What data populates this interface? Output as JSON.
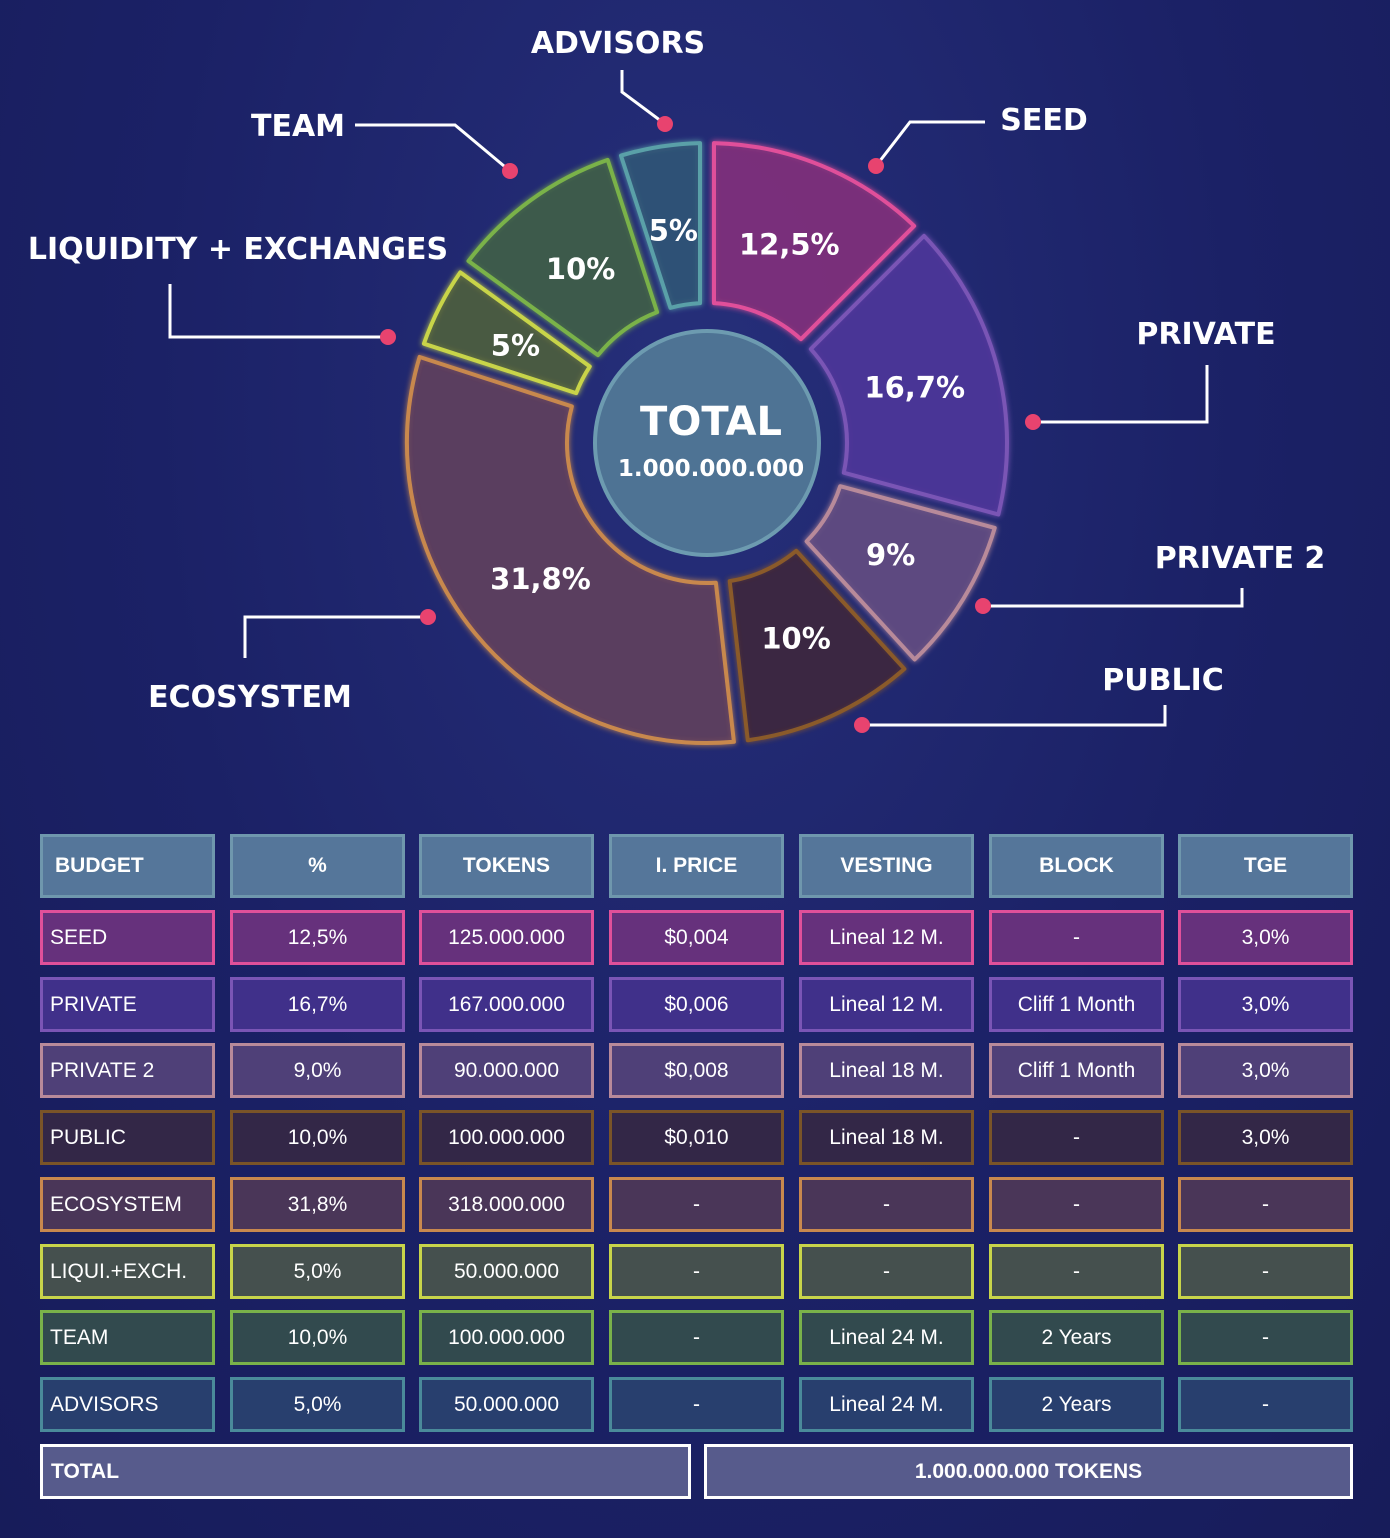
{
  "chart_data": {
    "type": "pie",
    "categories": [
      "SEED",
      "PRIVATE",
      "PRIVATE 2",
      "PUBLIC",
      "ECOSYSTEM",
      "LIQUIDITY + EXCHANGES",
      "TEAM",
      "ADVISORS"
    ],
    "values": [
      12.5,
      16.7,
      9,
      10,
      31.8,
      5,
      10,
      5
    ],
    "slice_labels": [
      "12,5%",
      "16,7%",
      "9%",
      "10%",
      "31,8%",
      "5%",
      "10%",
      "5%"
    ],
    "colors": [
      "#e0509a",
      "#7a55b5",
      "#b88a9a",
      "#8a5a2a",
      "#c8884e",
      "#c8d44a",
      "#7ab24a",
      "#5aa0a8"
    ],
    "fills": [
      "#7a2f7a",
      "#4a3596",
      "#5e4a80",
      "#3b2640",
      "#5b3d5e",
      "#4a5a40",
      "#3d5a4a",
      "#2f5276"
    ],
    "center_title": "TOTAL",
    "center_value": "1.000.000.000"
  },
  "table": {
    "headers": [
      "BUDGET",
      "%",
      "TOKENS",
      "I. PRICE",
      "VESTING",
      "BLOCK",
      "TGE"
    ],
    "rows": [
      {
        "cells": [
          "SEED",
          "12,5%",
          "125.000.000",
          "$0,004",
          "Lineal 12 M.",
          "-",
          "3,0%"
        ],
        "border": "#e0509a",
        "bg": "#66317c"
      },
      {
        "cells": [
          "PRIVATE",
          "16,7%",
          "167.000.000",
          "$0,006",
          "Lineal 12 M.",
          "Cliff 1 Month",
          "3,0%"
        ],
        "border": "#7a55b5",
        "bg": "#40308a"
      },
      {
        "cells": [
          "PRIVATE 2",
          "9,0%",
          "90.000.000",
          "$0,008",
          "Lineal 18 M.",
          "Cliff 1 Month",
          "3,0%"
        ],
        "border": "#b88a9a",
        "bg": "#4f4078"
      },
      {
        "cells": [
          "PUBLIC",
          "10,0%",
          "100.000.000",
          "$0,010",
          "Lineal 18 M.",
          "-",
          "3,0%"
        ],
        "border": "#7a5428",
        "bg": "#332747"
      },
      {
        "cells": [
          "ECOSYSTEM",
          "31,8%",
          "318.000.000",
          "-",
          "-",
          "-",
          "-"
        ],
        "border": "#c8884e",
        "bg": "#4a3658"
      },
      {
        "cells": [
          "LIQUI.+EXCH.",
          "5,0%",
          "50.000.000",
          "-",
          "-",
          "-",
          "-"
        ],
        "border": "#c8d44a",
        "bg": "#45504e"
      },
      {
        "cells": [
          "TEAM",
          "10,0%",
          "100.000.000",
          "-",
          "Lineal 24 M.",
          "2 Years",
          "-"
        ],
        "border": "#7ab24a",
        "bg": "#324a4e"
      },
      {
        "cells": [
          "ADVISORS",
          "5,0%",
          "50.000.000",
          "-",
          "Lineal 24 M.",
          "2 Years",
          "-"
        ],
        "border": "#4a8a9a",
        "bg": "#283f6e"
      }
    ],
    "total_label": "TOTAL",
    "total_value": "1.000.000.000 TOKENS"
  }
}
